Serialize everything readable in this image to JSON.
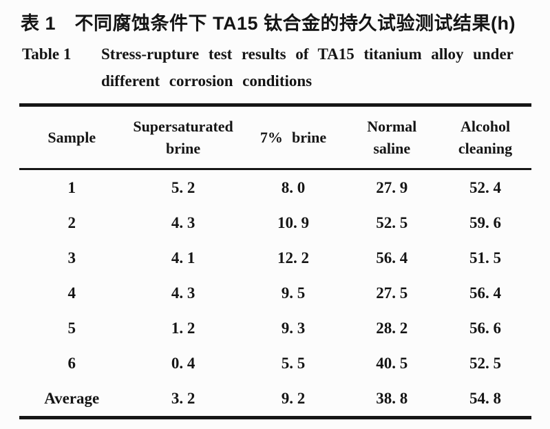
{
  "page": {
    "background": "#fcfcfc",
    "ink_color": "#151515"
  },
  "caption": {
    "title_zh": "表 1　不同腐蚀条件下 TA15 钛合金的持久试验测试结果(h)",
    "en_label": "Table 1",
    "en_line1": "Stress-rupture test results of TA15 titanium alloy under",
    "en_line2": "different corrosion conditions"
  },
  "chart_data": {
    "type": "table",
    "title": "Stress-rupture test results of TA15 titanium alloy under different corrosion conditions (h)",
    "columns": [
      "Sample",
      "Supersaturated brine",
      "7% brine",
      "Normal saline",
      "Alcohol cleaning"
    ],
    "rows": [
      [
        "1",
        5.2,
        8.0,
        27.9,
        52.4
      ],
      [
        "2",
        4.3,
        10.9,
        52.5,
        59.6
      ],
      [
        "3",
        4.1,
        12.2,
        56.4,
        51.5
      ],
      [
        "4",
        4.3,
        9.5,
        27.5,
        56.4
      ],
      [
        "5",
        1.2,
        9.3,
        28.2,
        56.6
      ],
      [
        "6",
        0.4,
        5.5,
        40.5,
        52.5
      ],
      [
        "Average",
        3.2,
        9.2,
        38.8,
        54.8
      ]
    ]
  },
  "table": {
    "columns": [
      "Sample",
      "Supersaturated brine",
      "7% brine",
      "Normal saline",
      "Alcohol cleaning"
    ],
    "rows": [
      {
        "sample": "1",
        "values": [
          "5. 2",
          "8. 0",
          "27. 9",
          "52. 4"
        ]
      },
      {
        "sample": "2",
        "values": [
          "4. 3",
          "10. 9",
          "52. 5",
          "59. 6"
        ]
      },
      {
        "sample": "3",
        "values": [
          "4. 1",
          "12. 2",
          "56. 4",
          "51. 5"
        ]
      },
      {
        "sample": "4",
        "values": [
          "4. 3",
          "9. 5",
          "27. 5",
          "56. 4"
        ]
      },
      {
        "sample": "5",
        "values": [
          "1. 2",
          "9. 3",
          "28. 2",
          "56. 6"
        ]
      },
      {
        "sample": "6",
        "values": [
          "0. 4",
          "5. 5",
          "40. 5",
          "52. 5"
        ]
      },
      {
        "sample": "Average",
        "values": [
          "3. 2",
          "9. 2",
          "38. 8",
          "54. 8"
        ]
      }
    ]
  }
}
